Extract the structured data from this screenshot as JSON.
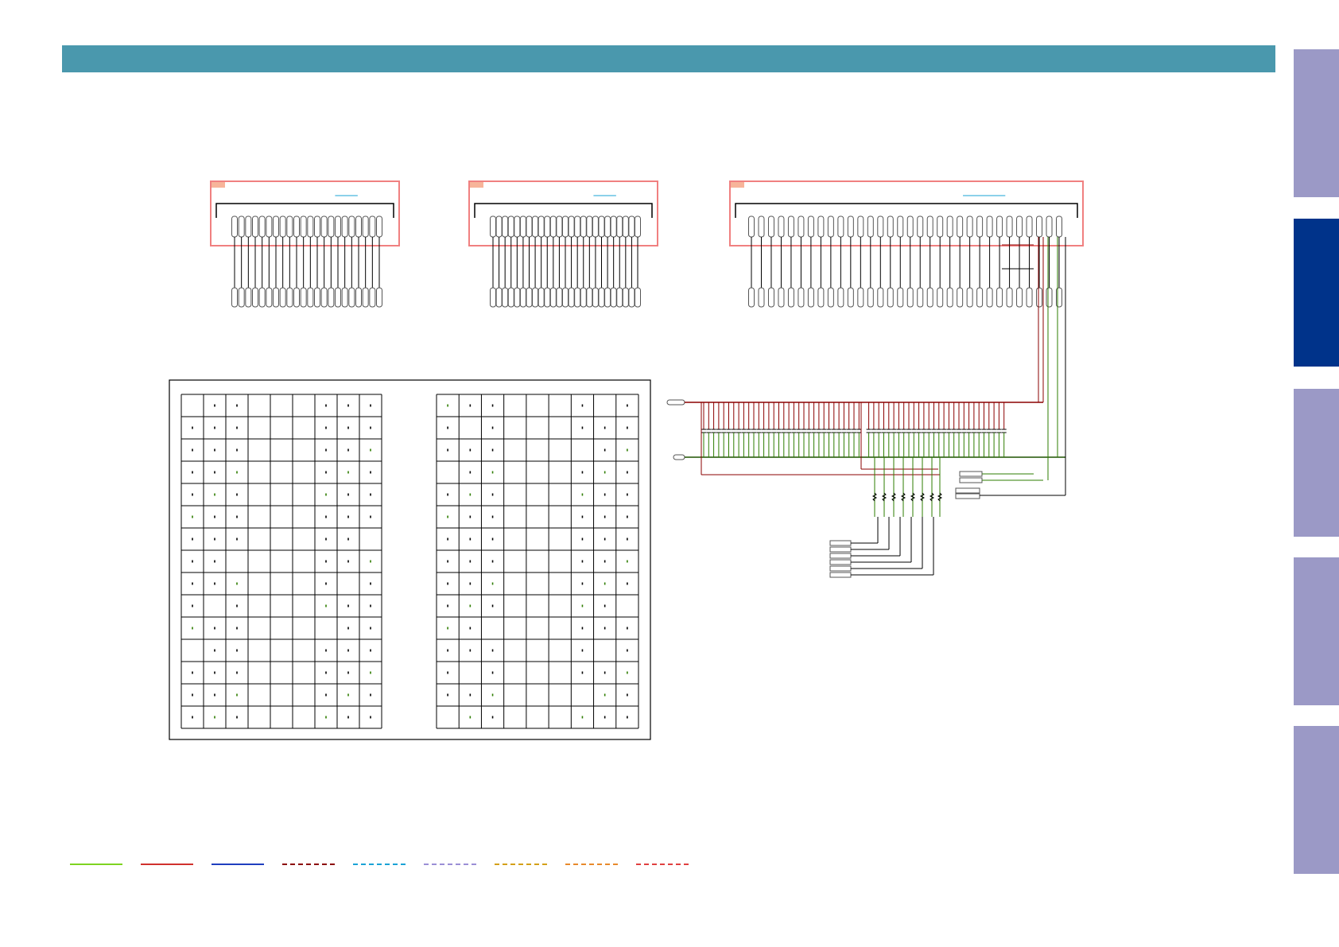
{
  "colors": {
    "header": "#4a98ad",
    "tab_inactive": "#9b99c6",
    "tab_active": "#00338a",
    "connector_box": "#f08080",
    "connector_tag": "#f7b49a",
    "link_underline": "#1aa3d6",
    "wire": "#000000",
    "wire_red": "#8b0000",
    "wire_green": "#2e7d00"
  },
  "side_tabs": [
    {
      "active": false
    },
    {
      "active": true
    },
    {
      "active": false
    },
    {
      "active": false
    },
    {
      "active": false
    }
  ],
  "legend": [
    {
      "color": "#7ed321",
      "style": "solid"
    },
    {
      "color": "#d0312d",
      "style": "solid"
    },
    {
      "color": "#1f3fbf",
      "style": "solid"
    },
    {
      "color": "#8b0000",
      "style": "dashed"
    },
    {
      "color": "#1aa3d6",
      "style": "dashed"
    },
    {
      "color": "#9b8fd6",
      "style": "dashed"
    },
    {
      "color": "#d4a017",
      "style": "dashed"
    },
    {
      "color": "#e8892b",
      "style": "dashed"
    },
    {
      "color": "#e04040",
      "style": "dashed"
    }
  ],
  "connectors": [
    {
      "pins": 22
    },
    {
      "pins": 25
    },
    {
      "pins": 32
    }
  ],
  "grid_tables": [
    {
      "rows": 15,
      "cols": 9
    },
    {
      "rows": 15,
      "cols": 9
    }
  ]
}
